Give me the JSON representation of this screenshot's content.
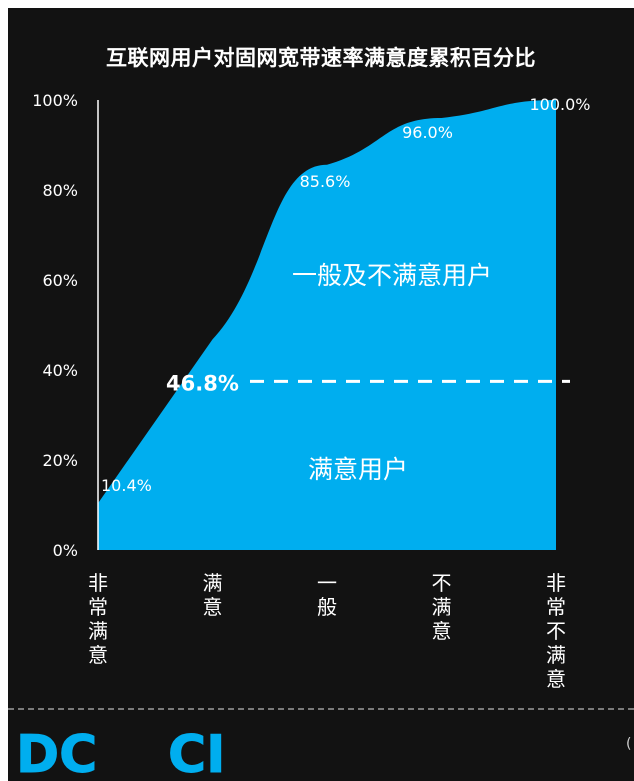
{
  "title": "互联网用户对固网宽带速率满意度累积百分比",
  "chart_data": {
    "type": "area",
    "categories": [
      "非常满意",
      "满意",
      "一般",
      "不满意",
      "非常不满意"
    ],
    "values": [
      10.4,
      46.8,
      85.6,
      96.0,
      100.0
    ],
    "value_labels": [
      "10.4%",
      "46.8%",
      "85.6%",
      "96.0%",
      "100.0%"
    ],
    "ylim": [
      0,
      100
    ],
    "yticks": [
      0,
      20,
      40,
      60,
      80,
      100
    ],
    "ytick_labels": [
      "0%",
      "20%",
      "40%",
      "60%",
      "80%",
      "100%"
    ],
    "fill_color": "#00aeef",
    "threshold": {
      "value": 46.8,
      "label": "46.8%",
      "color": "#ffffff",
      "style": "dashed"
    },
    "annotations": [
      {
        "text": "一般及不满意用户",
        "region": "above-threshold"
      },
      {
        "text": "满意用户",
        "region": "below-threshold"
      }
    ],
    "grid": false,
    "legend": "none"
  },
  "logo": {
    "text": "DCCI",
    "colors": [
      "#00aeef",
      "#f7941d"
    ]
  }
}
